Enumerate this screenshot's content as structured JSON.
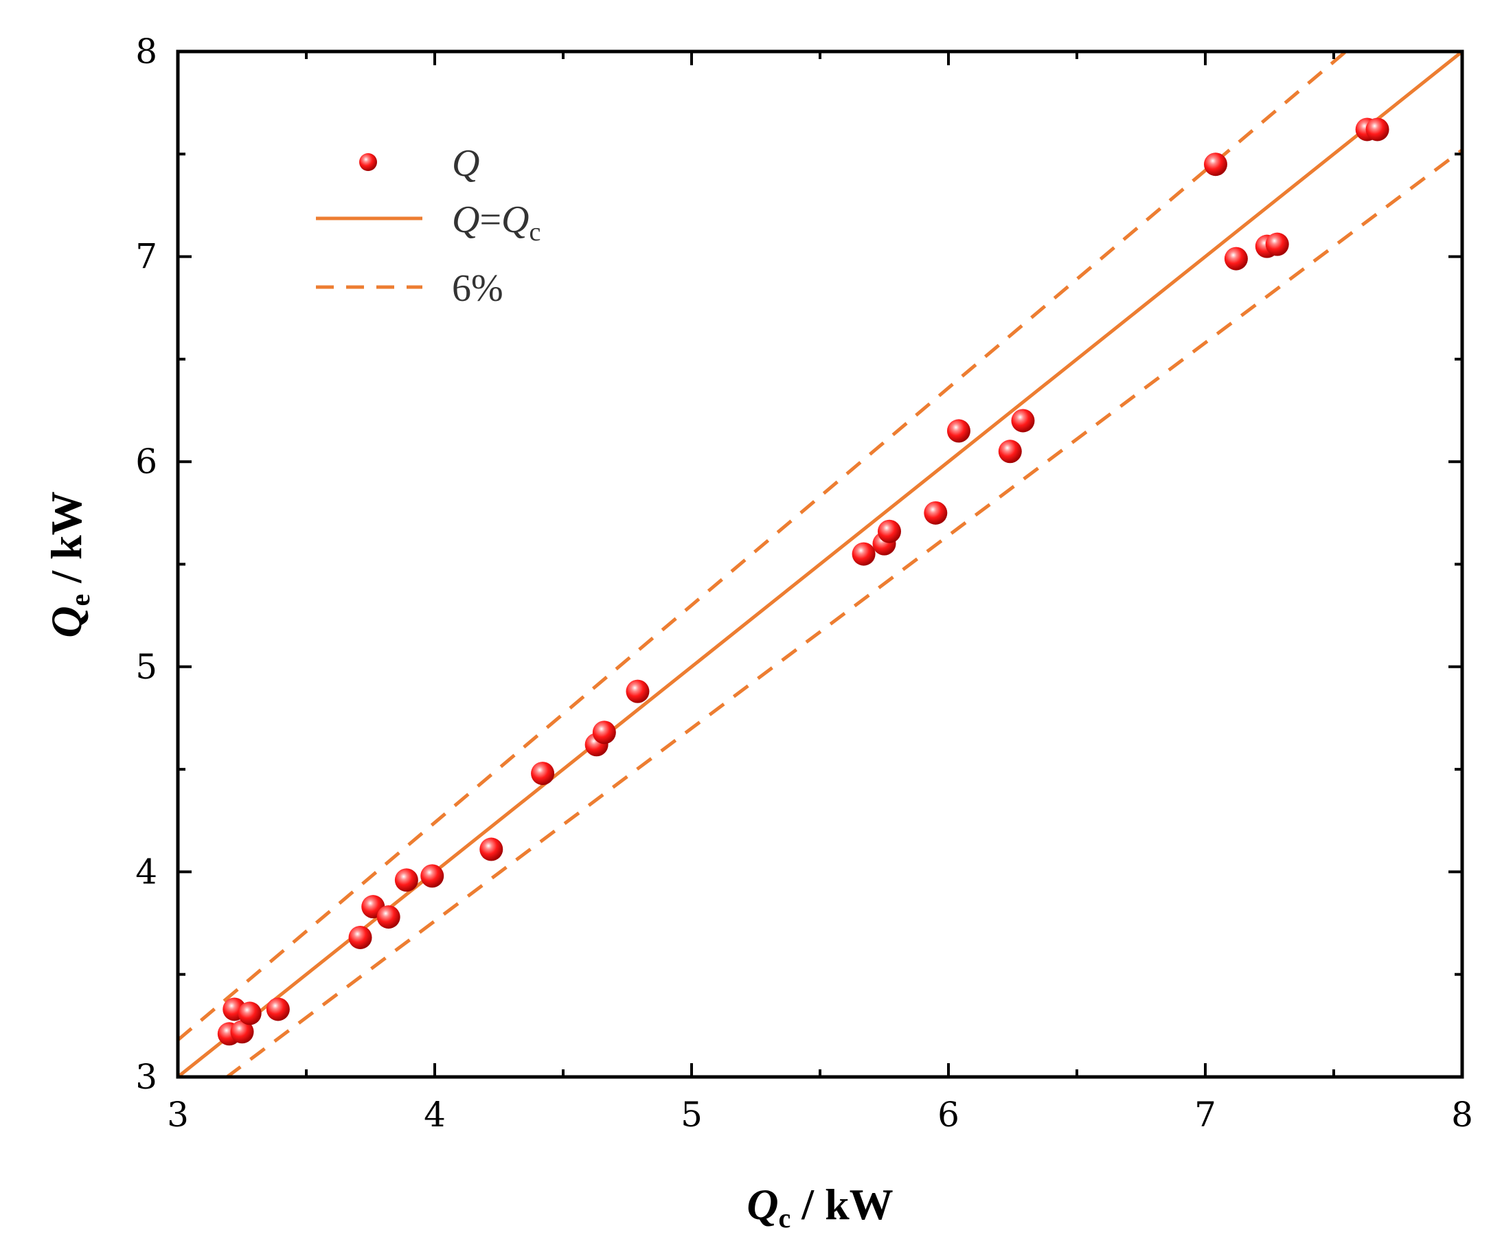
{
  "chart_data": {
    "type": "scatter",
    "title": "",
    "xlabel": {
      "symbol": "Q",
      "subscript": "c",
      "unit": " / kW"
    },
    "ylabel": {
      "symbol": "Q",
      "subscript": "e",
      "unit": " / kW"
    },
    "xlim": [
      3,
      8
    ],
    "ylim": [
      3,
      8
    ],
    "xticks": [
      "3",
      "4",
      "5",
      "6",
      "7",
      "8"
    ],
    "yticks": [
      "3",
      "4",
      "5",
      "6",
      "7",
      "8"
    ],
    "grid": false,
    "legend_position": "top-left",
    "colors": {
      "points": "#ff1a1a",
      "lines": "#ed7d31"
    },
    "legend": [
      {
        "kind": "marker",
        "symbol": "Q",
        "rest": ""
      },
      {
        "kind": "solid",
        "symbol": "Q",
        "rest": "=",
        "symbol2": "Q",
        "subscript": "c"
      },
      {
        "kind": "dashed",
        "label": "6%"
      }
    ],
    "series": [
      {
        "name": "Q",
        "points": [
          [
            3.2,
            3.21
          ],
          [
            3.22,
            3.33
          ],
          [
            3.25,
            3.22
          ],
          [
            3.28,
            3.31
          ],
          [
            3.39,
            3.33
          ],
          [
            3.71,
            3.68
          ],
          [
            3.76,
            3.83
          ],
          [
            3.82,
            3.78
          ],
          [
            3.89,
            3.96
          ],
          [
            3.99,
            3.98
          ],
          [
            4.22,
            4.11
          ],
          [
            4.42,
            4.48
          ],
          [
            4.63,
            4.62
          ],
          [
            4.66,
            4.68
          ],
          [
            4.79,
            4.88
          ],
          [
            5.67,
            5.55
          ],
          [
            5.75,
            5.6
          ],
          [
            5.77,
            5.66
          ],
          [
            5.95,
            5.75
          ],
          [
            6.04,
            6.15
          ],
          [
            6.24,
            6.05
          ],
          [
            6.29,
            6.2
          ],
          [
            7.04,
            7.45
          ],
          [
            7.12,
            6.99
          ],
          [
            7.24,
            7.05
          ],
          [
            7.28,
            7.06
          ],
          [
            7.63,
            7.62
          ],
          [
            7.67,
            7.62
          ]
        ]
      }
    ],
    "reference_lines": [
      {
        "name": "Q=Qc",
        "style": "solid",
        "slope": 1.0
      },
      {
        "name": "+6%",
        "style": "dashed",
        "slope": 1.06
      },
      {
        "name": "-6%",
        "style": "dashed",
        "slope": 0.94
      }
    ]
  }
}
